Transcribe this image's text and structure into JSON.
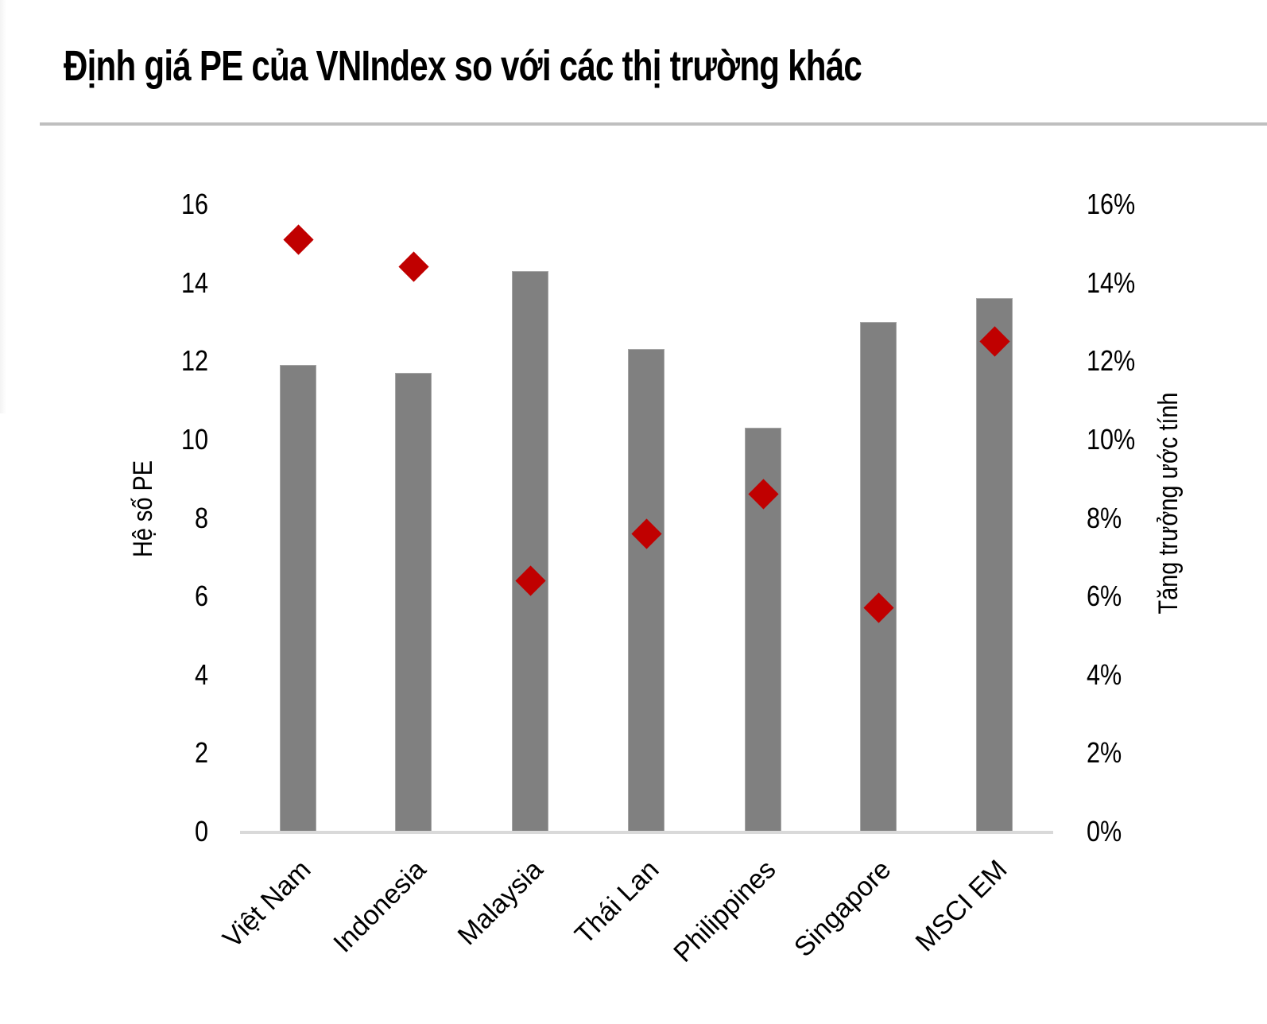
{
  "title": "Định giá PE của VNIndex so với các thị trường khác",
  "colors": {
    "bar": "#808080",
    "marker": "#c00000",
    "axis": "#d9d9d9",
    "rule": "#bfbfbf"
  },
  "axes": {
    "left_title": "Hệ số PE",
    "right_title": "Tăng trưởng ước tính",
    "left_ticks": [
      "0",
      "2",
      "4",
      "6",
      "8",
      "10",
      "12",
      "14",
      "16"
    ],
    "right_ticks": [
      "0%",
      "2%",
      "4%",
      "6%",
      "8%",
      "10%",
      "12%",
      "14%",
      "16%"
    ]
  },
  "categories": [
    "Việt Nam",
    "Indonesia",
    "Malaysia",
    "Thái Lan",
    "Philippines",
    "Singapore",
    "MSCI EM"
  ],
  "chart_data": {
    "type": "bar",
    "title": "Định giá PE của VNIndex so với các thị trường khác",
    "categories": [
      "Việt Nam",
      "Indonesia",
      "Malaysia",
      "Thái Lan",
      "Philippines",
      "Singapore",
      "MSCI EM"
    ],
    "series": [
      {
        "name": "Hệ số PE",
        "type": "bar",
        "axis": "left",
        "color": "#808080",
        "values": [
          11.9,
          11.7,
          14.3,
          12.3,
          10.3,
          13.0,
          13.6
        ]
      },
      {
        "name": "Tăng trưởng ước tính",
        "type": "scatter",
        "marker": "diamond",
        "axis": "right",
        "color": "#c00000",
        "values": [
          15.1,
          14.4,
          6.4,
          7.6,
          8.6,
          5.7,
          12.5
        ],
        "unit": "%"
      }
    ],
    "xlabel": "",
    "ylabel": "Hệ số PE",
    "y2label": "Tăng trưởng ước tính",
    "ylim": [
      0,
      16
    ],
    "y2lim": [
      0,
      16
    ],
    "yticks": [
      0,
      2,
      4,
      6,
      8,
      10,
      12,
      14,
      16
    ],
    "y2ticks": [
      "0%",
      "2%",
      "4%",
      "6%",
      "8%",
      "10%",
      "12%",
      "14%",
      "16%"
    ],
    "grid": false,
    "legend": "none"
  }
}
